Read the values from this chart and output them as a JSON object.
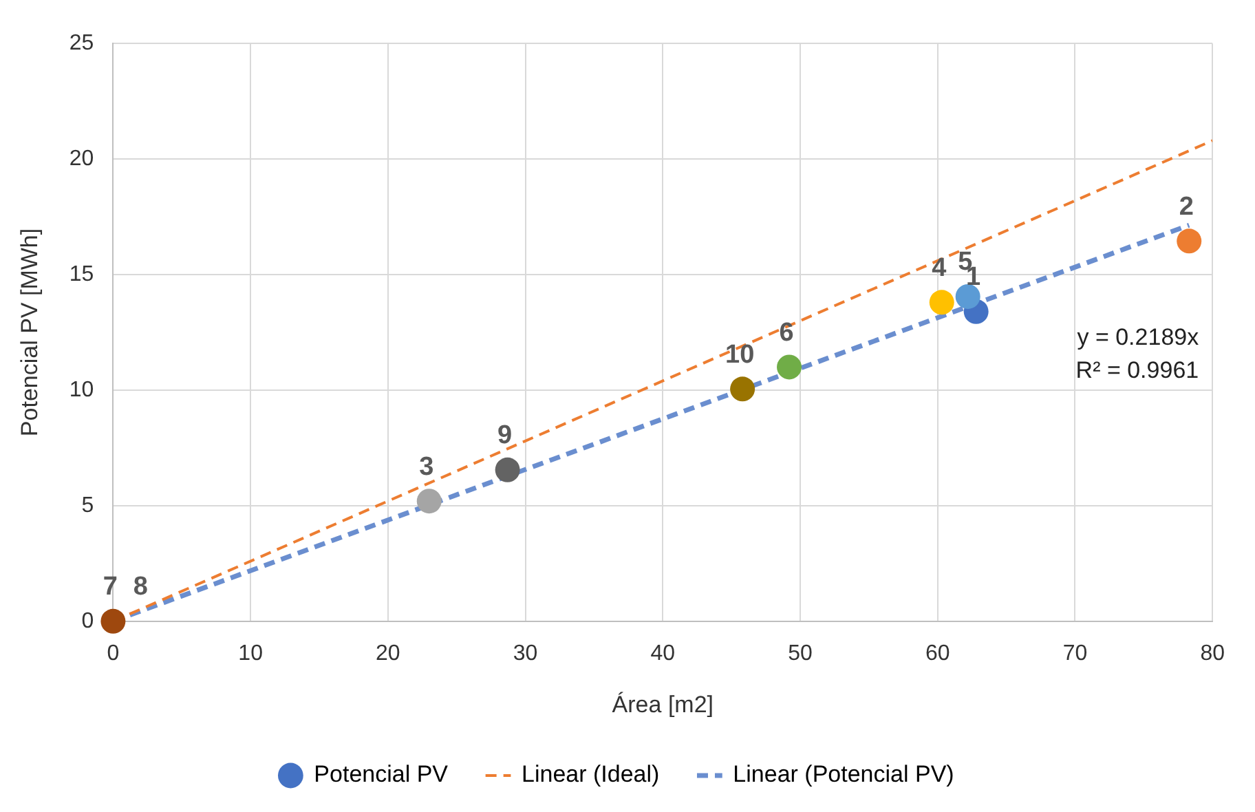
{
  "chart_data": {
    "type": "scatter",
    "xlabel": "Área [m2]",
    "ylabel": "Potencial PV [MWh]",
    "xlim": [
      0,
      80
    ],
    "xticks": [
      0,
      10,
      20,
      30,
      40,
      50,
      60,
      70,
      80
    ],
    "ylim": [
      0,
      25
    ],
    "yticks": [
      0,
      5,
      10,
      15,
      20,
      25
    ],
    "grid": true,
    "legend": "bottom",
    "series": [
      {
        "name": "Potencial PV",
        "marker": "circle",
        "color": "#4472c4",
        "colors": [
          "#4472c4",
          "#ed7d31",
          "#a5a5a5",
          "#ffc000",
          "#5b9bd5",
          "#70ad47",
          "#264478",
          "#9e480e",
          "#636363",
          "#997300"
        ],
        "x": [
          62.8,
          78.3,
          23.0,
          60.3,
          62.2,
          49.2,
          null,
          0,
          28.7,
          45.8
        ],
        "values": [
          13.4,
          16.45,
          5.2,
          13.8,
          14.05,
          11.0,
          null,
          0,
          6.55,
          10.05
        ]
      },
      {
        "name": "Linear (Ideal)",
        "type": "line",
        "marker": "none",
        "line_style": "dashed",
        "color": "#ed7d31",
        "x": [
          0,
          80
        ],
        "values": [
          0,
          20.8
        ]
      },
      {
        "name": "Linear (Potencial PV)",
        "type": "line",
        "marker": "none",
        "line_style": "dashed",
        "color": "#6a8ecf",
        "x": [
          0,
          78.3
        ],
        "values": [
          0,
          17.14
        ]
      }
    ],
    "annotations": [
      {
        "text": "1",
        "x": 62.8,
        "y": 13.4
      },
      {
        "text": "2",
        "x": 78.3,
        "y": 16.45
      },
      {
        "text": "3",
        "x": 23.0,
        "y": 5.2
      },
      {
        "text": "4",
        "x": 60.3,
        "y": 13.8
      },
      {
        "text": "5",
        "x": 62.2,
        "y": 14.05
      },
      {
        "text": "6",
        "x": 49.2,
        "y": 11.0
      },
      {
        "text": "7",
        "x": 0,
        "y": 0
      },
      {
        "text": "8",
        "x": 0,
        "y": 0
      },
      {
        "text": "9",
        "x": 28.7,
        "y": 6.55
      },
      {
        "text": "10",
        "x": 45.8,
        "y": 10.05
      },
      "y = 0.2189x",
      "R² = 0.9961"
    ]
  }
}
